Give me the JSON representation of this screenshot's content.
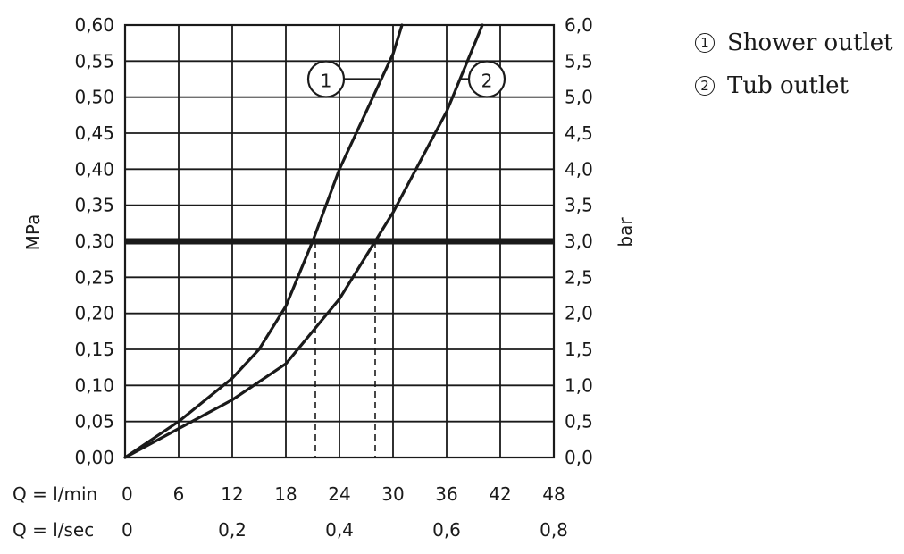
{
  "chart_data": {
    "type": "line",
    "y_left": {
      "label": "MPa",
      "ticks": [
        "0,00",
        "0,05",
        "0,10",
        "0,15",
        "0,20",
        "0,25",
        "0,30",
        "0,35",
        "0,40",
        "0,45",
        "0,50",
        "0,55",
        "0,60"
      ],
      "range": [
        0,
        0.6
      ]
    },
    "y_right": {
      "label": "bar",
      "ticks": [
        "0,0",
        "0,5",
        "1,0",
        "1,5",
        "2,0",
        "2,5",
        "3,0",
        "3,5",
        "4,0",
        "4,5",
        "5,0",
        "5,5",
        "6,0"
      ],
      "range": [
        0,
        6
      ]
    },
    "x_rows": [
      {
        "label": "Q = l/min",
        "ticks": [
          "0",
          "6",
          "12",
          "18",
          "24",
          "30",
          "36",
          "42",
          "48"
        ],
        "range": [
          0,
          48
        ]
      },
      {
        "label": "Q = l/sec",
        "ticks": [
          "0",
          "0,2",
          "0,4",
          "0,6",
          "0,8"
        ],
        "range": [
          0,
          0.8
        ]
      }
    ],
    "grid": true,
    "reference_line": {
      "y": 0.3
    },
    "series": [
      {
        "marker": "1",
        "name": "Shower outlet",
        "x": [
          0,
          6,
          12,
          15,
          18,
          21,
          24,
          27,
          30,
          31
        ],
        "y": [
          0,
          0.05,
          0.11,
          0.15,
          0.21,
          0.3,
          0.4,
          0.48,
          0.56,
          0.6
        ]
      },
      {
        "marker": "2",
        "name": "Tub outlet",
        "x": [
          0,
          6,
          12,
          18,
          24,
          28,
          30,
          33,
          36,
          38,
          40
        ],
        "y": [
          0,
          0.04,
          0.08,
          0.13,
          0.22,
          0.3,
          0.34,
          0.41,
          0.48,
          0.54,
          0.6
        ]
      }
    ],
    "drop_lines": [
      {
        "x": 21.3,
        "y": 0.3
      },
      {
        "x": 28.0,
        "y": 0.3
      }
    ],
    "callouts": [
      {
        "marker": "1",
        "from": [
          22.5,
          0.525
        ],
        "to": [
          28.5,
          0.525
        ]
      },
      {
        "marker": "2",
        "from": [
          40.5,
          0.525
        ],
        "to": [
          37.5,
          0.525
        ]
      }
    ],
    "legend": {
      "position": "top-right",
      "items": [
        {
          "marker": "①",
          "label": "Shower outlet"
        },
        {
          "marker": "②",
          "label": "Tub outlet"
        }
      ]
    }
  }
}
